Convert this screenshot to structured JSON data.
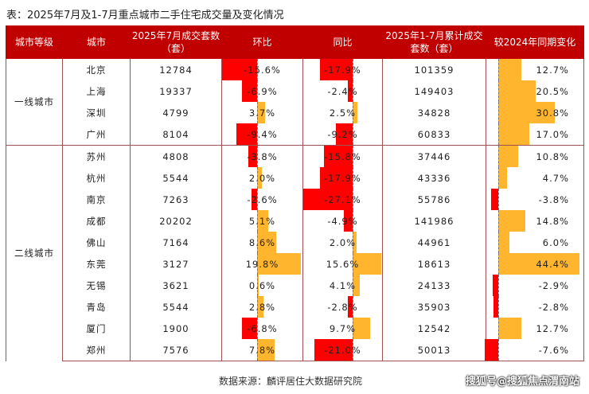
{
  "title": "表：2025年7月及1-7月重点城市二手住宅成交量及变化情况",
  "headers": [
    "城市等级",
    "城市",
    "2025年7月成交套数（套）",
    "环比",
    "同比",
    "2025年1-7月累计成交套数（套）",
    "较2024年同期变化"
  ],
  "colors": {
    "header": "#c00000",
    "negative": "#ff0000",
    "positive": "#ffb52e"
  },
  "groups": [
    {
      "label": "一线城市",
      "rows": 4
    },
    {
      "label": "二线城市",
      "rows": 10
    }
  ],
  "rows": [
    {
      "city": "北京",
      "july": "12784",
      "mom": -15.6,
      "mom_label": "-15.6%",
      "yoy": -17.9,
      "yoy_label": "-17.9%",
      "ytd": "101359",
      "ytd_chg": 12.7,
      "ytd_chg_label": "12.7%"
    },
    {
      "city": "上海",
      "july": "19337",
      "mom": -6.9,
      "mom_label": "-6.9%",
      "yoy": -2.4,
      "yoy_label": "-2.4%",
      "ytd": "149403",
      "ytd_chg": 20.5,
      "ytd_chg_label": "20.5%"
    },
    {
      "city": "深圳",
      "july": "4799",
      "mom": 3.7,
      "mom_label": "3.7%",
      "yoy": 2.5,
      "yoy_label": "2.5%",
      "ytd": "34828",
      "ytd_chg": 30.8,
      "ytd_chg_label": "30.8%"
    },
    {
      "city": "广州",
      "july": "8104",
      "mom": -9.4,
      "mom_label": "-9.4%",
      "yoy": -9.2,
      "yoy_label": "-9.2%",
      "ytd": "60833",
      "ytd_chg": 17.0,
      "ytd_chg_label": "17.0%"
    },
    {
      "city": "苏州",
      "july": "4808",
      "mom": -3.8,
      "mom_label": "-3.8%",
      "yoy": -15.8,
      "yoy_label": "-15.8%",
      "ytd": "37446",
      "ytd_chg": 10.8,
      "ytd_chg_label": "10.8%"
    },
    {
      "city": "杭州",
      "july": "5544",
      "mom": 2.0,
      "mom_label": "2.0%",
      "yoy": -17.9,
      "yoy_label": "-17.9%",
      "ytd": "43336",
      "ytd_chg": 4.7,
      "ytd_chg_label": "4.7%"
    },
    {
      "city": "南京",
      "july": "7263",
      "mom": -2.6,
      "mom_label": "-2.6%",
      "yoy": -27.1,
      "yoy_label": "-27.1%",
      "ytd": "55786",
      "ytd_chg": -3.8,
      "ytd_chg_label": "-3.8%"
    },
    {
      "city": "成都",
      "july": "20202",
      "mom": 5.1,
      "mom_label": "5.1%",
      "yoy": -4.9,
      "yoy_label": "-4.9%",
      "ytd": "141986",
      "ytd_chg": 14.8,
      "ytd_chg_label": "14.8%"
    },
    {
      "city": "佛山",
      "july": "7164",
      "mom": 8.6,
      "mom_label": "8.6%",
      "yoy": 2.0,
      "yoy_label": "2.0%",
      "ytd": "44961",
      "ytd_chg": 6.0,
      "ytd_chg_label": "6.0%"
    },
    {
      "city": "东莞",
      "july": "3127",
      "mom": 19.8,
      "mom_label": "19.8%",
      "yoy": 15.6,
      "yoy_label": "15.6%",
      "ytd": "18613",
      "ytd_chg": 44.4,
      "ytd_chg_label": "44.4%"
    },
    {
      "city": "无锡",
      "july": "3621",
      "mom": 0.6,
      "mom_label": "0.6%",
      "yoy": 4.1,
      "yoy_label": "4.1%",
      "ytd": "24133",
      "ytd_chg": -2.9,
      "ytd_chg_label": "-2.9%"
    },
    {
      "city": "青岛",
      "july": "5544",
      "mom": 2.8,
      "mom_label": "2.8%",
      "yoy": -2.8,
      "yoy_label": "-2.8%",
      "ytd": "35903",
      "ytd_chg": -2.8,
      "ytd_chg_label": "-2.8%"
    },
    {
      "city": "厦门",
      "july": "1900",
      "mom": -6.8,
      "mom_label": "-6.8%",
      "yoy": 9.7,
      "yoy_label": "9.7%",
      "ytd": "12542",
      "ytd_chg": 12.7,
      "ytd_chg_label": "12.7%"
    },
    {
      "city": "郑州",
      "july": "7576",
      "mom": 7.8,
      "mom_label": "7.8%",
      "yoy": -21.0,
      "yoy_label": "-21.0%",
      "ytd": "50013",
      "ytd_chg": -7.6,
      "ytd_chg_label": "-7.6%"
    }
  ],
  "source": "数据来源：麟评居住大数据研究院",
  "watermark": "搜狐号@搜狐焦点渭南站"
}
